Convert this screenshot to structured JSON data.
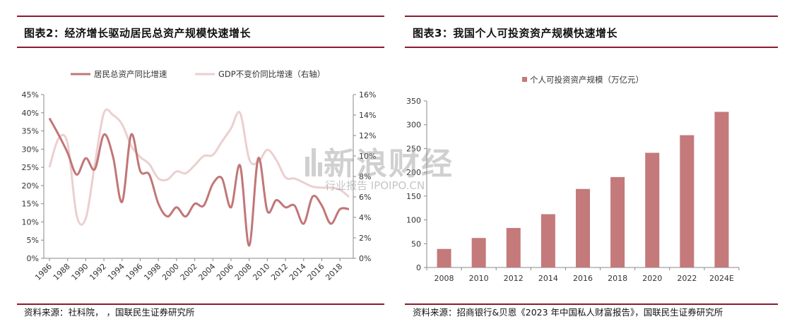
{
  "left": {
    "title": "图表2：经济增长驱动居民总资产规模快速增长",
    "source": "资料来源：社科院，        ，国联民生证券研究所"
  },
  "right": {
    "title": "图表3：我国个人可投资资产规模快速增长",
    "source": "资料来源：招商银行&贝恩《2023 年中国私人财富报告》，国联民生证券研究所"
  },
  "watermark": {
    "main": "新浪财经",
    "sub": "行业报告 IPOIPO.CN"
  },
  "colors": {
    "accent": "#8a1c2c",
    "series_dark": "#c27677",
    "series_light": "#eccfcf",
    "bar": "#c4797a"
  },
  "chart_data": [
    {
      "type": "line",
      "legend_position": "top",
      "x": [
        1986,
        1987,
        1988,
        1989,
        1990,
        1991,
        1992,
        1993,
        1994,
        1995,
        1996,
        1997,
        1998,
        1999,
        2000,
        2001,
        2002,
        2003,
        2004,
        2005,
        2006,
        2007,
        2008,
        2009,
        2010,
        2011,
        2012,
        2013,
        2014,
        2015,
        2016,
        2017,
        2018,
        2019
      ],
      "x_ticks": [
        "1986",
        "1988",
        "1990",
        "1992",
        "1994",
        "1996",
        "1998",
        "2000",
        "2002",
        "2004",
        "2006",
        "2008",
        "2010",
        "2012",
        "2014",
        "2016",
        "2018"
      ],
      "y_left_ticks": [
        "0%",
        "5%",
        "10%",
        "15%",
        "20%",
        "25%",
        "30%",
        "35%",
        "40%",
        "45%"
      ],
      "y_right_ticks": [
        "0%",
        "2%",
        "4%",
        "6%",
        "8%",
        "10%",
        "12%",
        "14%",
        "16%"
      ],
      "ylim_left": [
        0,
        45
      ],
      "ylim_right": [
        0,
        16
      ],
      "series": [
        {
          "name": "居民总资产同比增速",
          "axis": "left",
          "values": [
            38.5,
            34,
            29,
            23,
            27.5,
            24.5,
            34,
            28,
            15.5,
            34,
            24,
            23,
            15,
            11.5,
            14,
            11.5,
            15,
            14.5,
            20.5,
            22,
            14,
            25.5,
            3.5,
            27.5,
            13,
            16,
            14,
            14.5,
            9.5,
            17,
            14.5,
            9.5,
            13.5,
            13.5
          ]
        },
        {
          "name": "GDP不变价同比增速（右轴）",
          "axis": "right",
          "values": [
            8.9,
            11.7,
            11.2,
            4.2,
            3.9,
            9.2,
            14.2,
            14,
            13.1,
            11,
            9.9,
            9.2,
            7.8,
            7.7,
            8.5,
            8.3,
            9.1,
            10,
            10.1,
            11.4,
            12.7,
            14.2,
            9.7,
            9.4,
            10.6,
            9.6,
            7.9,
            7.8,
            7.4,
            7,
            6.9,
            6.9,
            6.7,
            6
          ]
        }
      ]
    },
    {
      "type": "bar",
      "legend_position": "top",
      "categories": [
        "2008",
        "2010",
        "2012",
        "2014",
        "2016",
        "2018",
        "2020",
        "2022",
        "2024E"
      ],
      "series": [
        {
          "name": "个人可投资资产规模（万亿元）",
          "values": [
            39,
            62,
            83,
            112,
            165,
            190,
            241,
            278,
            327
          ]
        }
      ],
      "y_ticks": [
        "0",
        "50",
        "100",
        "150",
        "200",
        "250",
        "300",
        "350"
      ],
      "ylim": [
        0,
        350
      ]
    }
  ]
}
